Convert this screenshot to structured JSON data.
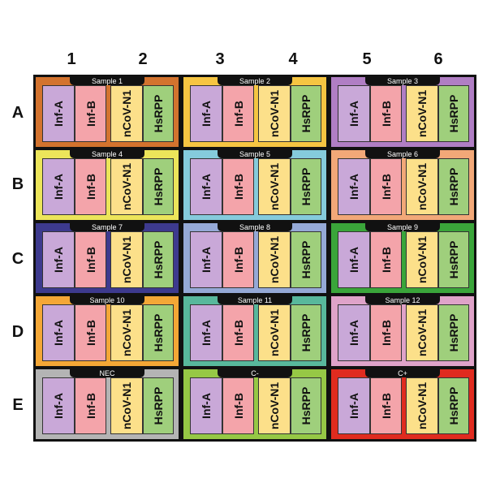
{
  "columns": [
    "1",
    "2",
    "3",
    "4",
    "5",
    "6"
  ],
  "rows": [
    "A",
    "B",
    "C",
    "D",
    "E"
  ],
  "targets": [
    "Inf-A",
    "Inf-B",
    "nCoV-N1",
    "HsRPP"
  ],
  "target_colors": [
    "#c9a8d8",
    "#f4a4aa",
    "#fce08a",
    "#9fcf7c"
  ],
  "wells": [
    {
      "label": "Sample 1",
      "color": "#d3732e"
    },
    {
      "label": "Sample 2",
      "color": "#f6c542"
    },
    {
      "label": "Sample 3",
      "color": "#b07ec4"
    },
    {
      "label": "Sample 4",
      "color": "#ece55a"
    },
    {
      "label": "Sample 5",
      "color": "#85cbdc"
    },
    {
      "label": "Sample 6",
      "color": "#f2a878"
    },
    {
      "label": "Sample 7",
      "color": "#3d3a8e"
    },
    {
      "label": "Sample 8",
      "color": "#95a9d6"
    },
    {
      "label": "Sample 9",
      "color": "#3aa53a"
    },
    {
      "label": "Sample 10",
      "color": "#f4a736"
    },
    {
      "label": "Sample 11",
      "color": "#58b89c"
    },
    {
      "label": "Sample 12",
      "color": "#dfa3c9"
    },
    {
      "label": "NEC",
      "color": "#b4b4b4"
    },
    {
      "label": "C-",
      "color": "#96c845"
    },
    {
      "label": "C+",
      "color": "#e02b1f"
    }
  ]
}
